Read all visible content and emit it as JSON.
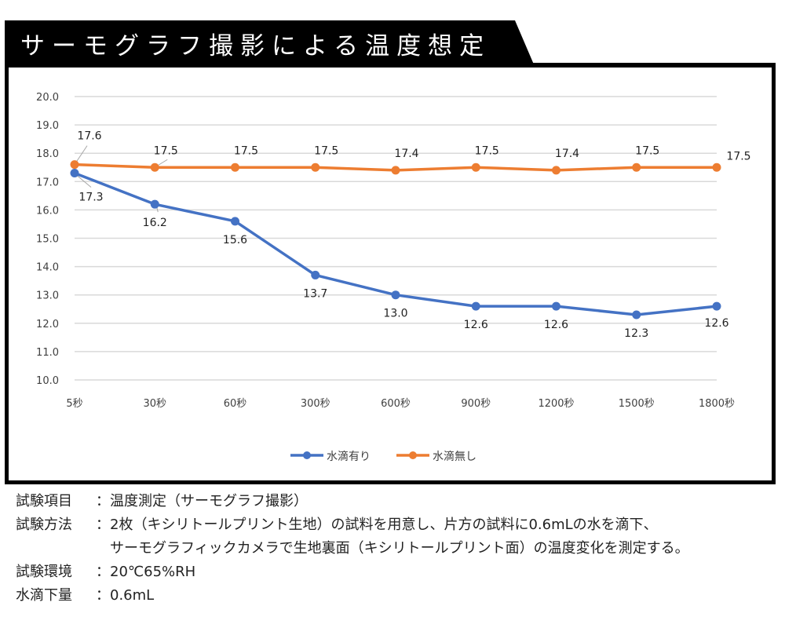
{
  "title": "サーモグラフ撮影による温度想定",
  "colors": {
    "series_with_drop": "#4472C4",
    "series_without_drop": "#ED7D31",
    "gridline": "#D9D9D9",
    "frame": "#000000"
  },
  "chart_data": {
    "type": "line",
    "title": "",
    "xlabel": "",
    "ylabel": "",
    "categories": [
      "5秒",
      "30秒",
      "60秒",
      "300秒",
      "600秒",
      "900秒",
      "1200秒",
      "1500秒",
      "1800秒"
    ],
    "y_ticks": [
      "10.0",
      "11.0",
      "12.0",
      "13.0",
      "14.0",
      "15.0",
      "16.0",
      "17.0",
      "18.0",
      "19.0",
      "20.0"
    ],
    "ylim": [
      10.0,
      20.0
    ],
    "grid": true,
    "legend_position": "bottom",
    "series": [
      {
        "name": "水滴有り",
        "color": "#4472C4",
        "values": [
          17.3,
          16.2,
          15.6,
          13.7,
          13.0,
          12.6,
          12.6,
          12.3,
          12.6
        ],
        "labels": [
          "17.3",
          "16.2",
          "15.6",
          "13.7",
          "13.0",
          "12.6",
          "12.6",
          "12.3",
          "12.6"
        ]
      },
      {
        "name": "水滴無し",
        "color": "#ED7D31",
        "values": [
          17.6,
          17.5,
          17.5,
          17.5,
          17.4,
          17.5,
          17.4,
          17.5,
          17.5
        ],
        "labels": [
          "17.6",
          "17.5",
          "17.5",
          "17.5",
          "17.4",
          "17.5",
          "17.4",
          "17.5",
          "17.5"
        ]
      }
    ]
  },
  "notes": [
    {
      "key": "試験項目",
      "sep": "：",
      "lines": [
        "温度測定（サーモグラフ撮影）"
      ]
    },
    {
      "key": "試験方法",
      "sep": "：",
      "lines": [
        "2枚（キシリトールプリント生地）の試料を用意し、片方の試料に0.6mLの水を滴下、",
        "サーモグラフィックカメラで生地裏面（キシリトールプリント面）の温度変化を測定する。"
      ]
    },
    {
      "key": "試験環境",
      "sep": "：",
      "lines": [
        "20℃65%RH"
      ]
    },
    {
      "key": "水滴下量",
      "sep": "：",
      "lines": [
        "0.6mL"
      ]
    }
  ]
}
